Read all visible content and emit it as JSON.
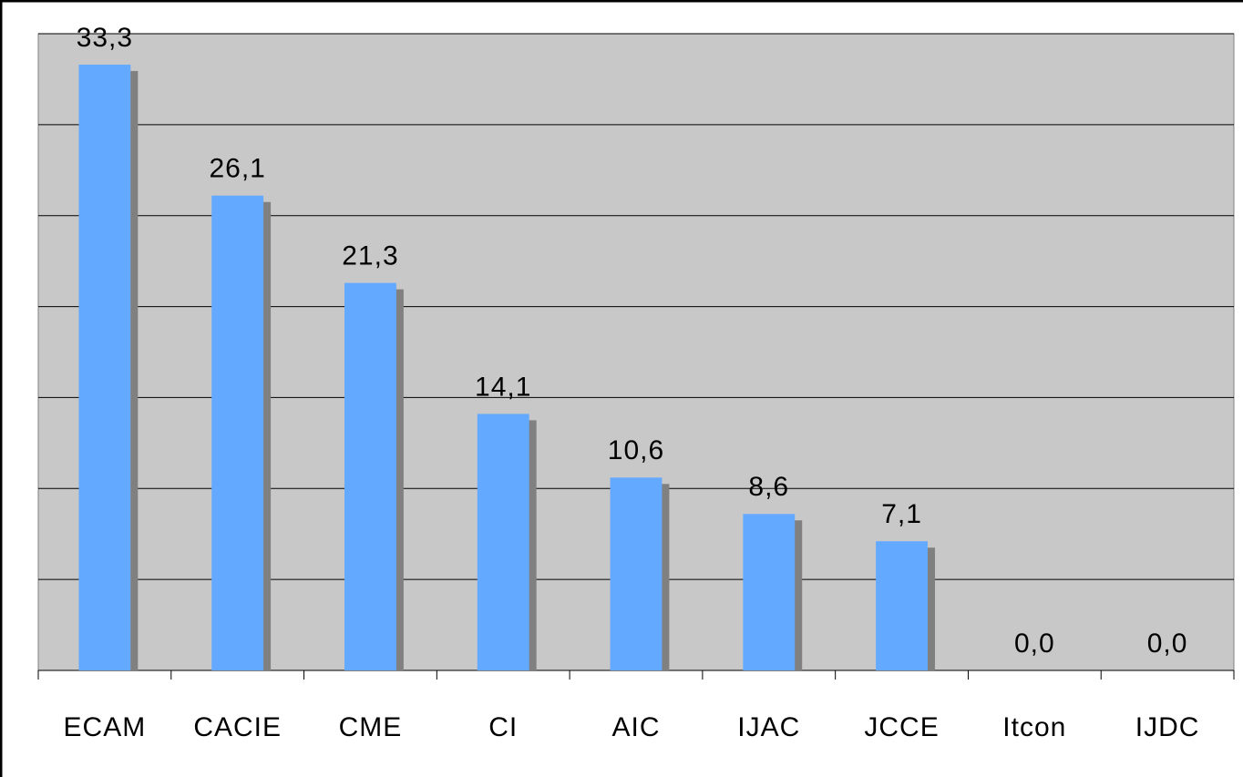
{
  "chart_data": {
    "type": "bar",
    "categories": [
      "ECAM",
      "CACIE",
      "CME",
      "CI",
      "AIC",
      "IJAC",
      "JCCE",
      "Itcon",
      "IJDC"
    ],
    "values": [
      33.3,
      26.1,
      21.3,
      14.1,
      10.6,
      8.6,
      7.1,
      0.0,
      0.0
    ],
    "value_labels": [
      "33,3",
      "26,1",
      "21,3",
      "14,1",
      "10,6",
      "8,6",
      "7,1",
      "0,0",
      "0,0"
    ],
    "color": "#63a9ff",
    "shadow_color": "#808080",
    "ylim": [
      0,
      35
    ],
    "yticks": [
      0,
      5,
      10,
      15,
      20,
      25,
      30,
      35
    ],
    "grid": true
  }
}
